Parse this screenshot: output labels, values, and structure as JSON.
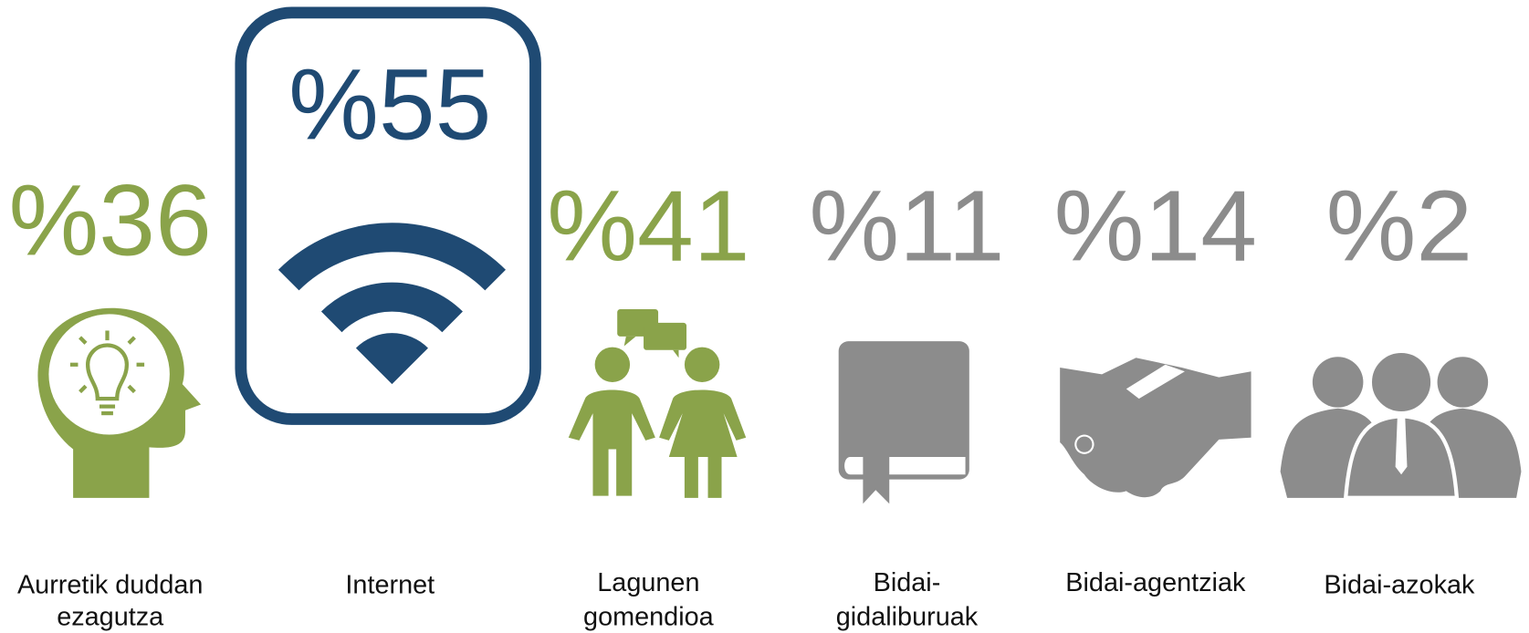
{
  "items": [
    {
      "percent": "%36",
      "label": [
        "Aurretik duddan",
        "ezagutza"
      ],
      "color": "#8aa34a"
    },
    {
      "percent": "%55",
      "label": [
        "Internet"
      ],
      "color": "#1f4a73"
    },
    {
      "percent": "%41",
      "label": [
        "Lagunen",
        "gomendioa"
      ],
      "color": "#8aa34a"
    },
    {
      "percent": "%11",
      "label": [
        "Bidai-",
        "gidaliburuak"
      ],
      "color": "#8c8c8c"
    },
    {
      "percent": "%14",
      "label": [
        "Bidai-agentziak"
      ],
      "color": "#8c8c8c"
    },
    {
      "percent": "%2",
      "label": [
        "Bidai-azokak"
      ],
      "color": "#8c8c8c"
    }
  ]
}
